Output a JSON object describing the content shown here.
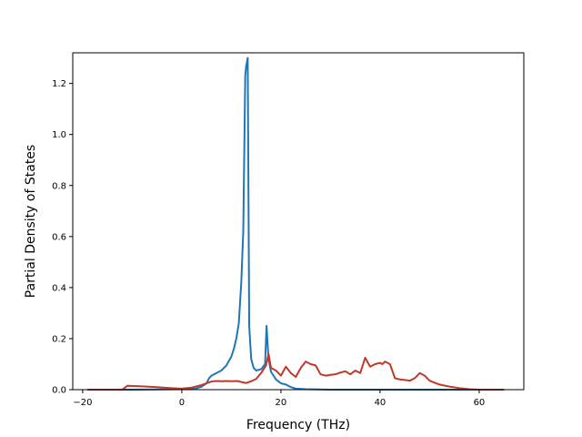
{
  "chart_data": {
    "type": "line",
    "title": "",
    "xlabel": "Frequency (THz)",
    "ylabel": "Partial Density of States",
    "xlim": [
      -22,
      69
    ],
    "ylim": [
      0,
      1.32
    ],
    "xticks": [
      -20,
      0,
      20,
      40,
      60
    ],
    "xtick_labels": [
      "−20",
      "0",
      "20",
      "40",
      "60"
    ],
    "yticks": [
      0.0,
      0.2,
      0.4,
      0.6,
      0.8,
      1.0,
      1.2
    ],
    "ytick_labels": [
      "0.0",
      "0.2",
      "0.4",
      "0.6",
      "0.8",
      "1.0",
      "1.2"
    ],
    "grid": false,
    "legend": "none",
    "series": [
      {
        "color": "#1f77b4",
        "x": [
          -19,
          -10,
          0,
          3,
          4,
          5,
          5.5,
          6,
          7,
          8,
          9,
          10,
          10.5,
          11,
          11.5,
          12,
          12.4,
          12.8,
          13.0,
          13.3,
          13.6,
          14.0,
          14.5,
          15,
          16,
          16.8,
          17.1,
          17.5,
          18,
          19,
          20,
          21,
          22,
          23,
          25,
          30,
          40,
          50,
          65
        ],
        "y": [
          0,
          0,
          0.002,
          0.005,
          0.012,
          0.025,
          0.045,
          0.055,
          0.065,
          0.075,
          0.095,
          0.13,
          0.16,
          0.2,
          0.26,
          0.42,
          0.62,
          1.23,
          1.27,
          1.3,
          0.25,
          0.12,
          0.085,
          0.075,
          0.08,
          0.1,
          0.25,
          0.12,
          0.07,
          0.04,
          0.025,
          0.02,
          0.01,
          0.004,
          0.002,
          0,
          0,
          0,
          0
        ]
      },
      {
        "color": "#c0392b",
        "x": [
          -19,
          -12,
          -11,
          -8,
          -5,
          -2,
          0,
          2,
          4,
          5,
          6,
          7,
          8,
          9,
          10,
          11,
          11.5,
          12,
          13,
          14,
          15,
          16,
          17,
          17.5,
          18,
          19,
          20,
          21,
          22,
          23,
          24,
          25,
          26,
          27,
          28,
          29,
          30,
          31,
          32,
          33,
          34,
          35,
          36,
          37,
          38,
          39,
          40,
          40.5,
          41,
          42,
          43,
          44,
          45,
          46,
          47,
          48,
          49,
          50,
          52,
          54,
          56,
          58,
          60,
          65
        ],
        "y": [
          0,
          0,
          0.015,
          0.013,
          0.01,
          0.006,
          0.004,
          0.008,
          0.018,
          0.025,
          0.032,
          0.034,
          0.033,
          0.034,
          0.033,
          0.034,
          0.033,
          0.03,
          0.026,
          0.033,
          0.042,
          0.065,
          0.095,
          0.14,
          0.085,
          0.075,
          0.055,
          0.09,
          0.065,
          0.05,
          0.085,
          0.11,
          0.1,
          0.095,
          0.06,
          0.055,
          0.058,
          0.06,
          0.067,
          0.072,
          0.06,
          0.075,
          0.065,
          0.125,
          0.09,
          0.1,
          0.105,
          0.1,
          0.11,
          0.1,
          0.045,
          0.04,
          0.038,
          0.035,
          0.045,
          0.065,
          0.055,
          0.035,
          0.02,
          0.012,
          0.006,
          0.002,
          0,
          0
        ]
      }
    ]
  }
}
